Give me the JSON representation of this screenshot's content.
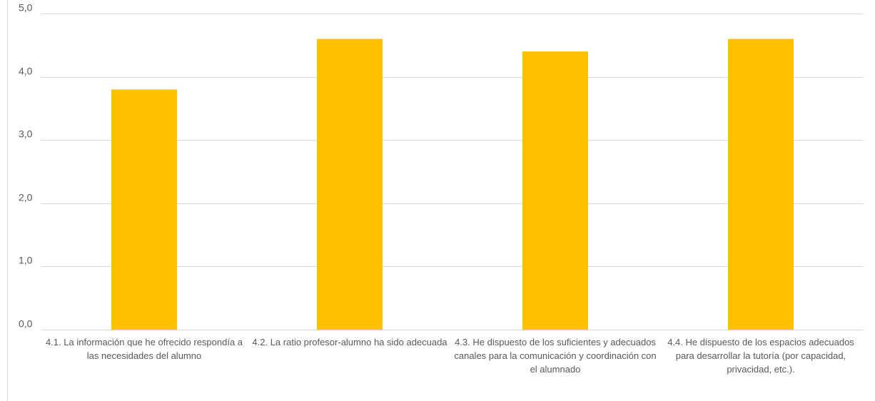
{
  "chart_data": {
    "type": "bar",
    "categories": [
      "4.1. La información que he ofrecido respondía a las necesidades del alumno",
      "4.2. La ratio profesor-alumno ha sido adecuada",
      "4.3. He dispuesto de los suficientes y adecuados canales para la comunicación y coordinación con el alumnado",
      "4.4. He dispuesto de los espacios adecuados para desarrollar la tutoría (por capacidad, privacidad, etc.)."
    ],
    "values": [
      3.8,
      4.6,
      4.4,
      4.6
    ],
    "ylim": [
      0,
      5
    ],
    "yticks": [
      "0,0",
      "1,0",
      "2,0",
      "3,0",
      "4,0",
      "5,0"
    ],
    "grid": true,
    "bar_color": "#FFC000",
    "grid_color": "#D9D9D9",
    "title": "",
    "xlabel": "",
    "ylabel": ""
  }
}
